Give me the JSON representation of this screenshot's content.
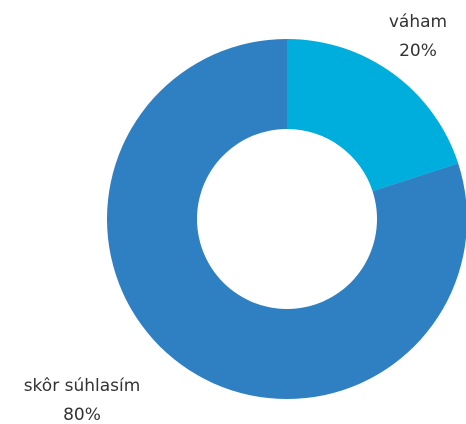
{
  "chart_data": {
    "type": "donut",
    "categories": [
      "váham",
      "skôr súhlasím"
    ],
    "values": [
      20,
      80
    ],
    "value_labels": [
      "20%",
      "80%"
    ],
    "colors": [
      "#00aedd",
      "#2e80c2"
    ]
  }
}
